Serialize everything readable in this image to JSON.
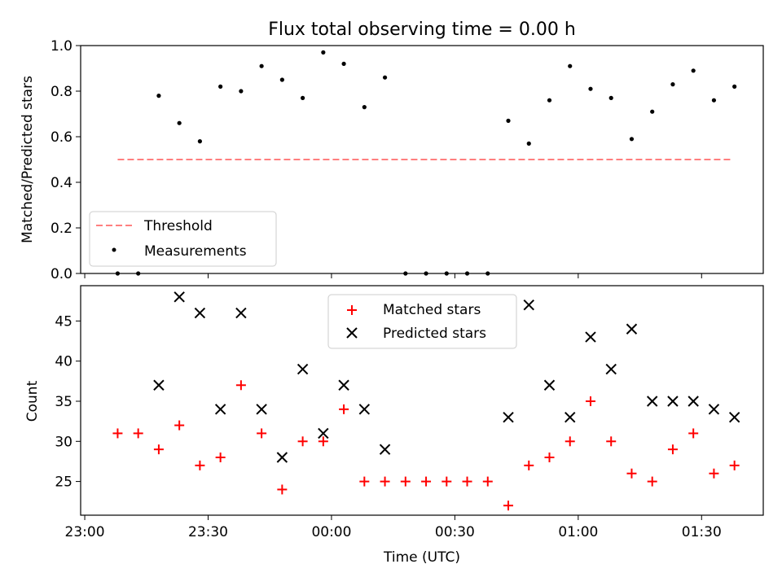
{
  "chart_data": [
    {
      "type": "scatter",
      "title": "Flux total observing time = 0.00 h",
      "xlabel": "",
      "ylabel": "Matched/Predicted stars",
      "ylim": [
        0,
        1.0
      ],
      "yticks": [
        "0.0",
        "0.2",
        "0.4",
        "0.6",
        "0.8",
        "1.0"
      ],
      "ytick_values": [
        0,
        0.2,
        0.4,
        0.6,
        0.8,
        1.0
      ],
      "xlim": [
        "22:59",
        "01:45"
      ],
      "legend_position": "lower-left",
      "threshold": {
        "name": "Threshold",
        "value": 0.5,
        "x_start": "23:08",
        "x_end": "01:37",
        "color": "#ff7f7f",
        "style": "dashed"
      },
      "series": [
        {
          "name": "Measurements",
          "color": "#000000",
          "marker": "dot",
          "x": [
            "23:08",
            "23:13",
            "23:18",
            "23:23",
            "23:28",
            "23:33",
            "23:38",
            "23:43",
            "23:48",
            "23:53",
            "23:58",
            "00:03",
            "00:08",
            "00:13",
            "00:18",
            "00:23",
            "00:28",
            "00:33",
            "00:38",
            "00:43",
            "00:48",
            "00:53",
            "00:58",
            "01:03",
            "01:08",
            "01:13",
            "01:18",
            "01:23",
            "01:28",
            "01:33",
            "01:38"
          ],
          "y": [
            0.0,
            0.0,
            0.78,
            0.66,
            0.58,
            0.82,
            0.8,
            0.91,
            0.85,
            0.77,
            0.97,
            0.92,
            0.73,
            0.86,
            0.0,
            0.0,
            0.0,
            0.0,
            0.0,
            0.67,
            0.57,
            0.76,
            0.91,
            0.81,
            0.77,
            0.59,
            0.71,
            0.83,
            0.89,
            0.76,
            0.82
          ]
        }
      ]
    },
    {
      "type": "scatter",
      "title": "",
      "xlabel": "Time (UTC)",
      "ylabel": "Count",
      "ylim": [
        20.8,
        49.4
      ],
      "yticks": [
        "25",
        "30",
        "35",
        "40",
        "45"
      ],
      "ytick_values": [
        25,
        30,
        35,
        40,
        45
      ],
      "xlim": [
        "22:59",
        "01:45"
      ],
      "xticks": [
        "23:00",
        "23:30",
        "00:00",
        "00:30",
        "01:00",
        "01:30"
      ],
      "legend_position": "upper-center",
      "series": [
        {
          "name": "Matched stars",
          "color": "#ff0000",
          "marker": "plus",
          "x": [
            "23:08",
            "23:13",
            "23:18",
            "23:23",
            "23:28",
            "23:33",
            "23:38",
            "23:43",
            "23:48",
            "23:53",
            "23:58",
            "00:03",
            "00:08",
            "00:13",
            "00:18",
            "00:23",
            "00:28",
            "00:33",
            "00:38",
            "00:43",
            "00:48",
            "00:53",
            "00:58",
            "01:03",
            "01:08",
            "01:13",
            "01:18",
            "01:23",
            "01:28",
            "01:33",
            "01:38"
          ],
          "y": [
            31,
            31,
            29,
            32,
            27,
            28,
            37,
            31,
            24,
            30,
            30,
            34,
            25,
            25,
            25,
            25,
            25,
            25,
            25,
            22,
            27,
            28,
            30,
            35,
            30,
            26,
            25,
            29,
            31,
            26,
            27
          ]
        },
        {
          "name": "Predicted stars",
          "color": "#000000",
          "marker": "x",
          "x": [
            "23:18",
            "23:23",
            "23:28",
            "23:33",
            "23:38",
            "23:43",
            "23:48",
            "23:53",
            "23:58",
            "00:03",
            "00:08",
            "00:13",
            "00:43",
            "00:48",
            "00:53",
            "00:58",
            "01:03",
            "01:08",
            "01:13",
            "01:18",
            "01:23",
            "01:28",
            "01:33",
            "01:38"
          ],
          "y": [
            37,
            48,
            46,
            34,
            46,
            34,
            28,
            39,
            31,
            37,
            34,
            29,
            33,
            47,
            37,
            33,
            43,
            39,
            44,
            35,
            35,
            35,
            34,
            33
          ]
        }
      ]
    }
  ]
}
